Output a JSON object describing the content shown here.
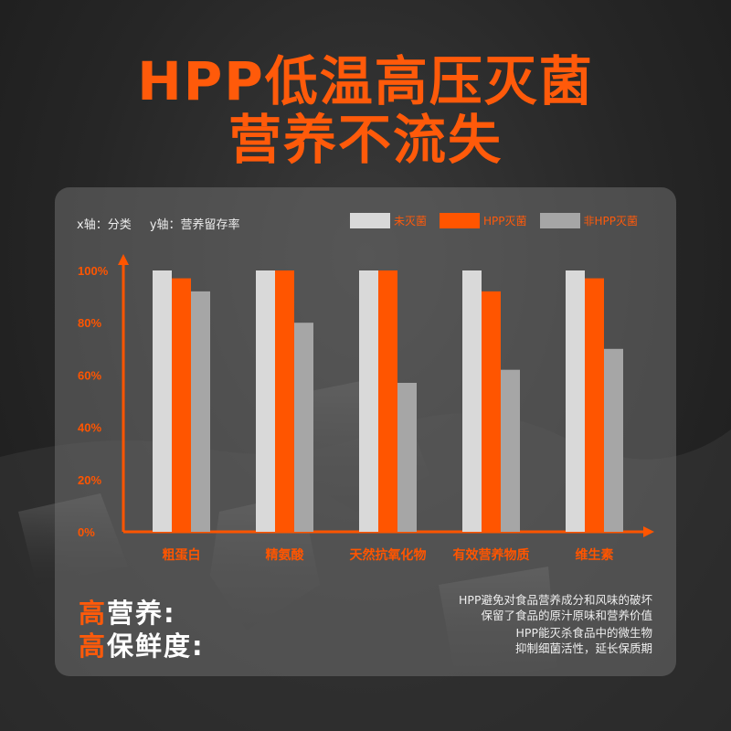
{
  "title": {
    "line1": "HPP低温高压灭菌",
    "line2": "营养不流失"
  },
  "axis_note": {
    "x": "x轴：分类",
    "y": "y轴：营养留存率"
  },
  "legend": [
    {
      "label": "未灭菌",
      "color": "#d9d9d9"
    },
    {
      "label": "HPP灭菌",
      "color": "#ff5500"
    },
    {
      "label": "非HPP灭菌",
      "color": "#a6a6a6"
    }
  ],
  "chart_data": {
    "type": "bar",
    "categories": [
      "粗蛋白",
      "精氨酸",
      "天然抗氧化物",
      "有效营养物质",
      "维生素"
    ],
    "series": [
      {
        "name": "未灭菌",
        "values": [
          100,
          100,
          100,
          100,
          100
        ]
      },
      {
        "name": "HPP灭菌",
        "values": [
          97,
          100,
          100,
          92,
          97
        ]
      },
      {
        "name": "非HPP灭菌",
        "values": [
          92,
          80,
          57,
          62,
          70
        ]
      }
    ],
    "y_ticks": [
      "0%",
      "20%",
      "40%",
      "60%",
      "80%",
      "100%"
    ],
    "ylim": [
      0,
      100
    ],
    "xlabel": "",
    "ylabel": ""
  },
  "footer": {
    "left1_hi": "高",
    "left1_rest": "营养:",
    "left2_hi": "高",
    "left2_rest": "保鲜度:",
    "right1_line1": "HPP避免对食品营养成分和风味的破坏",
    "right1_line2": "保留了食品的原汁原味和营养价值",
    "right2_line1": "HPP能灭杀食品中的微生物",
    "right2_line2": "抑制细菌活性，延长保质期"
  },
  "colors": {
    "accent": "#ff5a0a",
    "axis": "#ff5500"
  }
}
